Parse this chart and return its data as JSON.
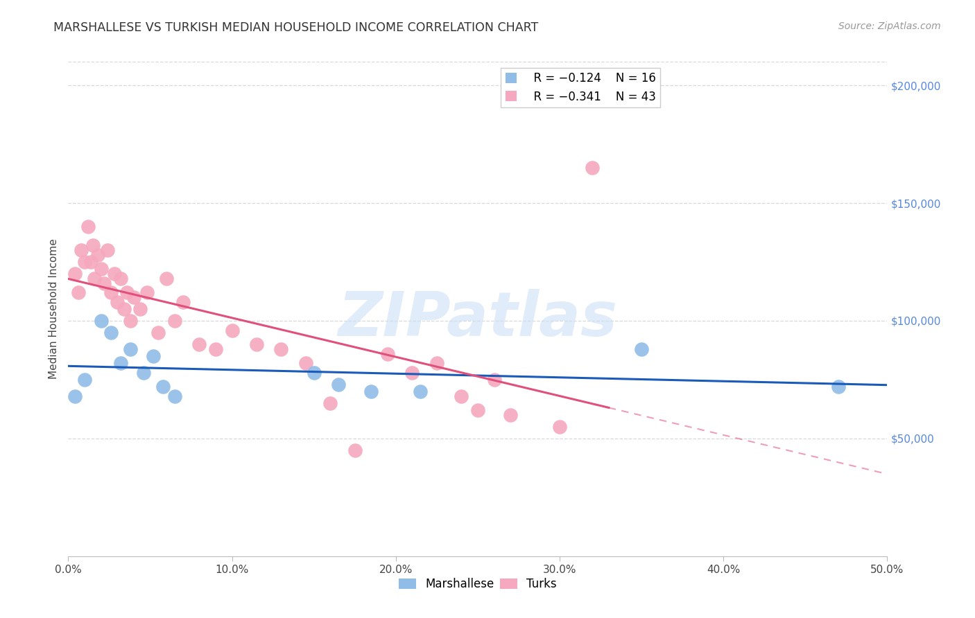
{
  "title": "MARSHALLESE VS TURKISH MEDIAN HOUSEHOLD INCOME CORRELATION CHART",
  "source": "Source: ZipAtlas.com",
  "ylabel": "Median Household Income",
  "watermark": "ZIPatlas",
  "xlim": [
    0.0,
    0.5
  ],
  "ylim": [
    0,
    210000
  ],
  "xtick_labels": [
    "0.0%",
    "10.0%",
    "20.0%",
    "30.0%",
    "40.0%",
    "50.0%"
  ],
  "xtick_vals": [
    0.0,
    0.1,
    0.2,
    0.3,
    0.4,
    0.5
  ],
  "ytick_labels": [
    "$50,000",
    "$100,000",
    "$150,000",
    "$200,000"
  ],
  "ytick_vals": [
    50000,
    100000,
    150000,
    200000
  ],
  "legend_blue_r": "R = −0.124",
  "legend_blue_n": "N = 16",
  "legend_pink_r": "R = −0.341",
  "legend_pink_n": "N = 43",
  "blue_color": "#90bde8",
  "pink_color": "#f5a8be",
  "line_blue": "#1a5ab8",
  "line_pink": "#e0507a",
  "blue_x": [
    0.004,
    0.01,
    0.02,
    0.026,
    0.032,
    0.038,
    0.046,
    0.052,
    0.058,
    0.065,
    0.15,
    0.165,
    0.185,
    0.215,
    0.35,
    0.47
  ],
  "blue_y": [
    68000,
    75000,
    100000,
    95000,
    82000,
    88000,
    78000,
    85000,
    72000,
    68000,
    78000,
    73000,
    70000,
    70000,
    88000,
    72000
  ],
  "pink_x": [
    0.004,
    0.006,
    0.008,
    0.01,
    0.012,
    0.014,
    0.015,
    0.016,
    0.018,
    0.02,
    0.022,
    0.024,
    0.026,
    0.028,
    0.03,
    0.032,
    0.034,
    0.036,
    0.038,
    0.04,
    0.044,
    0.048,
    0.055,
    0.06,
    0.065,
    0.07,
    0.08,
    0.09,
    0.1,
    0.115,
    0.13,
    0.145,
    0.16,
    0.175,
    0.195,
    0.21,
    0.225,
    0.24,
    0.25,
    0.26,
    0.27,
    0.3,
    0.32
  ],
  "pink_y": [
    120000,
    112000,
    130000,
    125000,
    140000,
    125000,
    132000,
    118000,
    128000,
    122000,
    116000,
    130000,
    112000,
    120000,
    108000,
    118000,
    105000,
    112000,
    100000,
    110000,
    105000,
    112000,
    95000,
    118000,
    100000,
    108000,
    90000,
    88000,
    96000,
    90000,
    88000,
    82000,
    65000,
    45000,
    86000,
    78000,
    82000,
    68000,
    62000,
    75000,
    60000,
    55000,
    165000
  ],
  "background_color": "#ffffff",
  "grid_color": "#d8d8d8"
}
